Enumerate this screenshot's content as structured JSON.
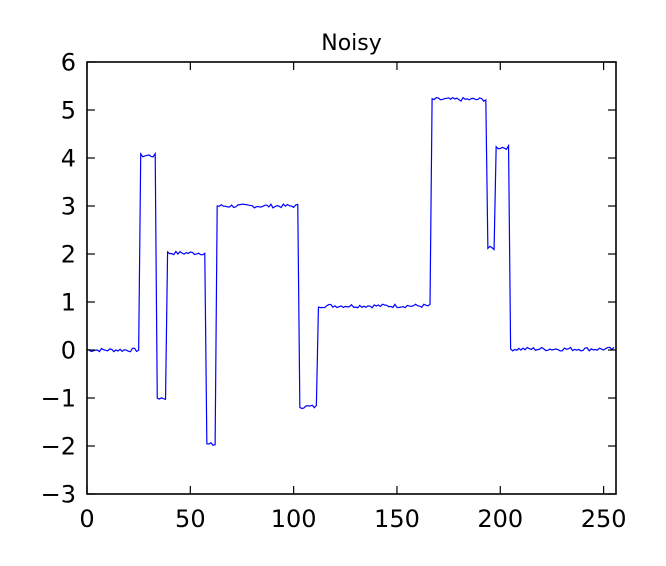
{
  "chart_data": {
    "type": "line",
    "title": "Noisy",
    "xlabel": "",
    "ylabel": "",
    "xlim": [
      0,
      256
    ],
    "ylim": [
      -3,
      6
    ],
    "xticks": [
      0,
      50,
      100,
      150,
      200,
      250
    ],
    "yticks": [
      -3,
      -2,
      -1,
      0,
      1,
      2,
      3,
      4,
      5,
      6
    ],
    "xtick_labels": [
      "0",
      "50",
      "100",
      "150",
      "200",
      "250"
    ],
    "ytick_labels": [
      "−3",
      "−2",
      "−1",
      "0",
      "1",
      "2",
      "3",
      "4",
      "5",
      "6"
    ],
    "grid": false,
    "line_color": "#0000ff",
    "segments": [
      {
        "x_start": 0,
        "x_end": 25,
        "y": 0.0
      },
      {
        "x_start": 26,
        "x_end": 33,
        "y": 4.05
      },
      {
        "x_start": 34,
        "x_end": 38,
        "y": -1.0
      },
      {
        "x_start": 39,
        "x_end": 57,
        "y": 2.02
      },
      {
        "x_start": 58,
        "x_end": 62,
        "y": -1.97
      },
      {
        "x_start": 63,
        "x_end": 102,
        "y": 3.0
      },
      {
        "x_start": 103,
        "x_end": 111,
        "y": -1.18
      },
      {
        "x_start": 112,
        "x_end": 166,
        "y": 0.92
      },
      {
        "x_start": 167,
        "x_end": 193,
        "y": 5.22
      },
      {
        "x_start": 194,
        "x_end": 197,
        "y": 2.12
      },
      {
        "x_start": 198,
        "x_end": 204,
        "y": 4.22
      },
      {
        "x_start": 205,
        "x_end": 255,
        "y": 0.02
      }
    ],
    "noise_amplitude": 0.04
  }
}
